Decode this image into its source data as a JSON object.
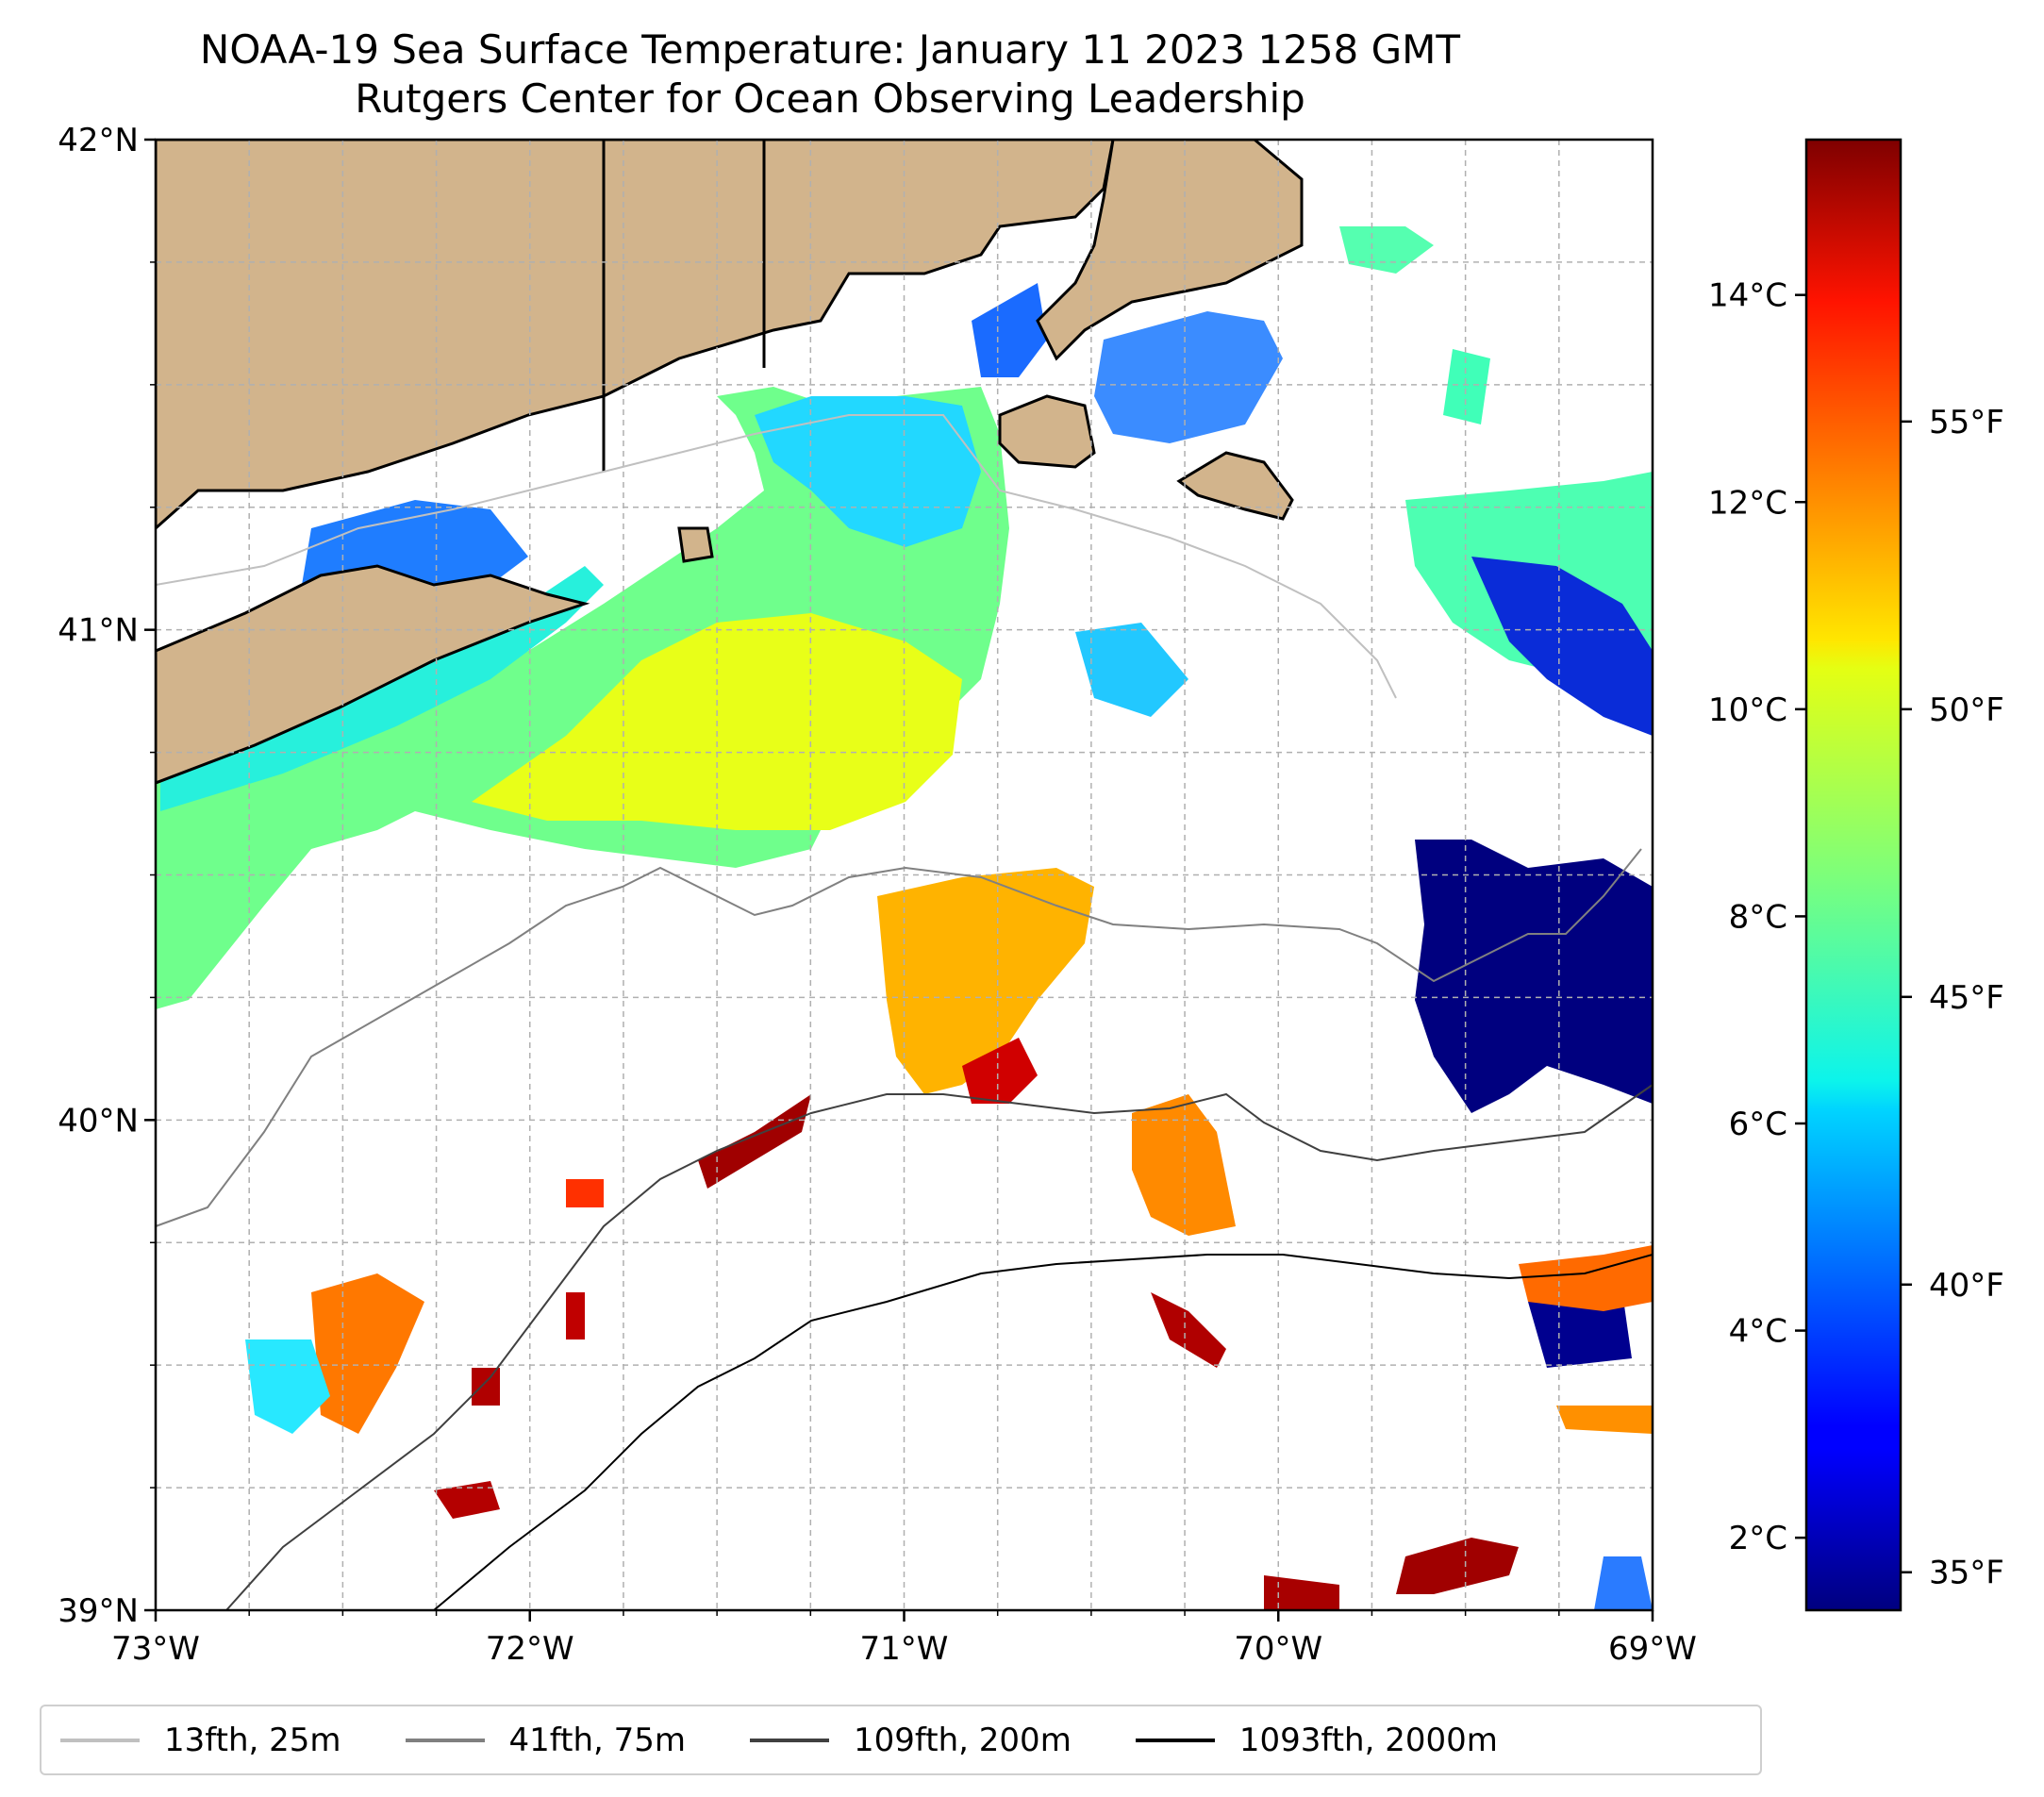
{
  "title": {
    "line1": "NOAA-19 Sea Surface Temperature: January 11 2023 1258 GMT",
    "line2": "Rutgers Center for Ocean Observing Leadership"
  },
  "map": {
    "lon_range": [
      -73,
      -69
    ],
    "lat_range": [
      39,
      42
    ],
    "x_ticks": [
      {
        "lon": -73,
        "label": "73°W"
      },
      {
        "lon": -72,
        "label": "72°W"
      },
      {
        "lon": -71,
        "label": "71°W"
      },
      {
        "lon": -70,
        "label": "70°W"
      },
      {
        "lon": -69,
        "label": "69°W"
      }
    ],
    "y_ticks": [
      {
        "lat": 42,
        "label": "42°N"
      },
      {
        "lat": 41,
        "label": "41°N"
      },
      {
        "lat": 40,
        "label": "40°N"
      },
      {
        "lat": 39,
        "label": "39°N"
      }
    ],
    "land_color": "#d2b48c",
    "gridlines": "dashed"
  },
  "colorbar": {
    "colormap": "jet",
    "celsius_range": [
      1.3,
      15.5
    ],
    "celsius_ticks": [
      {
        "value": 2,
        "label": "2°C"
      },
      {
        "value": 4,
        "label": "4°C"
      },
      {
        "value": 6,
        "label": "6°C"
      },
      {
        "value": 8,
        "label": "8°C"
      },
      {
        "value": 10,
        "label": "10°C"
      },
      {
        "value": 12,
        "label": "12°C"
      },
      {
        "value": 14,
        "label": "14°C"
      }
    ],
    "fahrenheit_ticks": [
      {
        "value": 35,
        "label": "35°F"
      },
      {
        "value": 40,
        "label": "40°F"
      },
      {
        "value": 45,
        "label": "45°F"
      },
      {
        "value": 50,
        "label": "50°F"
      },
      {
        "value": 55,
        "label": "55°F"
      }
    ]
  },
  "legend": {
    "entries": [
      {
        "label": "13fth, 25m",
        "color": "#c0c0c0"
      },
      {
        "label": "41fth, 75m",
        "color": "#808080"
      },
      {
        "label": "109fth, 200m",
        "color": "#404040"
      },
      {
        "label": "1093fth, 2000m",
        "color": "#000000"
      }
    ]
  }
}
